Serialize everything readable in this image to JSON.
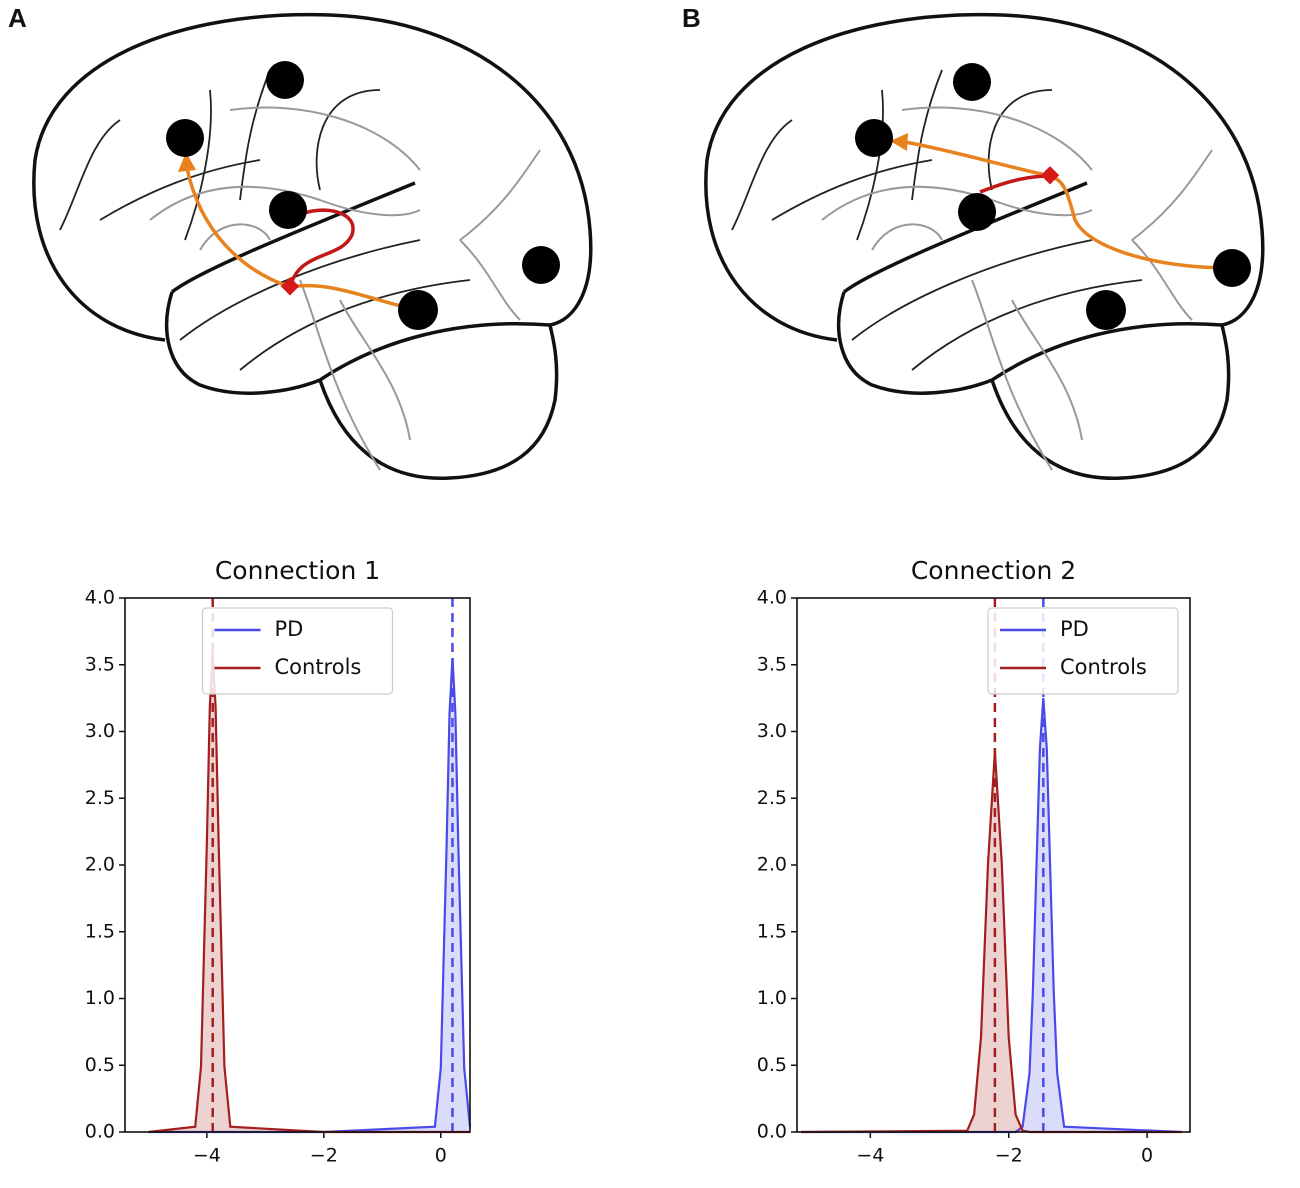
{
  "panel_labels": [
    "A",
    "B"
  ],
  "chart_data": [
    {
      "type": "density",
      "title": "Connection 1",
      "x": [
        -5,
        -4.2,
        -4.1,
        -4.0,
        -3.95,
        -3.9,
        -3.85,
        -3.8,
        -3.7,
        -3.6,
        -2,
        -0.1,
        0,
        0.1,
        0.15,
        0.2,
        0.25,
        0.3,
        0.4,
        0.5
      ],
      "series": [
        {
          "name": "PD",
          "color": "#4a4ae8",
          "mean": 0.2,
          "values": [
            0,
            0,
            0,
            0,
            0,
            0,
            0,
            0,
            0,
            0,
            0,
            0.04,
            0.48,
            2.15,
            3.13,
            3.55,
            3.13,
            2.15,
            0.48,
            0.04
          ]
        },
        {
          "name": "Controls",
          "color": "#a31f1f",
          "mean": -3.9,
          "values": [
            0,
            0.04,
            0.49,
            2.18,
            3.18,
            3.6,
            3.18,
            2.18,
            0.49,
            0.04,
            0,
            0,
            0,
            0,
            0,
            0,
            0,
            0,
            0,
            0
          ]
        }
      ],
      "xlim": [
        -5.4,
        0.5
      ],
      "xticks": [
        {
          "value": -4,
          "label": "−4"
        },
        {
          "value": -2,
          "label": "−2"
        },
        0
      ],
      "ylim": [
        0,
        4
      ],
      "yticks": [
        {
          "value": 0,
          "label": "0.0"
        },
        {
          "value": 0.5,
          "label": "0.5"
        },
        {
          "value": 1,
          "label": "1.0"
        },
        {
          "value": 1.5,
          "label": "1.5"
        },
        {
          "value": 2,
          "label": "2.0"
        },
        {
          "value": 2.5,
          "label": "2.5"
        },
        {
          "value": 3,
          "label": "3.0"
        },
        {
          "value": 3.5,
          "label": "3.5"
        },
        {
          "value": 4,
          "label": "4.0"
        }
      ],
      "legend": "upper center"
    },
    {
      "type": "density",
      "title": "Connection 2",
      "x": [
        -5,
        -2.6,
        -2.5,
        -2.4,
        -2.3,
        -2.2,
        -2.1,
        -2.0,
        -1.9,
        -1.8,
        -1.7,
        -1.65,
        -1.6,
        -1.55,
        -1.5,
        -1.45,
        -1.4,
        -1.35,
        -1.3,
        -1.2,
        0.5
      ],
      "series": [
        {
          "name": "PD",
          "color": "#4a4ae8",
          "mean": -1.5,
          "values": [
            0,
            0,
            0,
            0,
            0,
            0,
            0,
            0,
            0,
            0.04,
            0.44,
            1.06,
            1.97,
            2.87,
            3.25,
            2.87,
            1.97,
            1.06,
            0.44,
            0.04,
            0
          ]
        },
        {
          "name": "Controls",
          "color": "#a31f1f",
          "mean": -2.2,
          "values": [
            0,
            0.01,
            0.13,
            0.71,
            2.01,
            2.85,
            2.01,
            0.71,
            0.13,
            0.01,
            0,
            0,
            0,
            0,
            0,
            0,
            0,
            0,
            0,
            0,
            0
          ]
        }
      ],
      "xlim": [
        -5.06,
        0.62
      ],
      "xticks": [
        {
          "value": -4,
          "label": "−4"
        },
        {
          "value": -2,
          "label": "−2"
        },
        0
      ],
      "ylim": [
        0,
        4
      ],
      "yticks": [
        {
          "value": 0,
          "label": "0.0"
        },
        {
          "value": 0.5,
          "label": "0.5"
        },
        {
          "value": 1,
          "label": "1.0"
        },
        {
          "value": 1.5,
          "label": "1.5"
        },
        {
          "value": 2,
          "label": "2.0"
        },
        {
          "value": 2.5,
          "label": "2.5"
        },
        {
          "value": 3,
          "label": "3.0"
        },
        {
          "value": 3.5,
          "label": "3.5"
        },
        {
          "value": 4,
          "label": "4.0"
        }
      ],
      "legend": "upper right"
    }
  ]
}
